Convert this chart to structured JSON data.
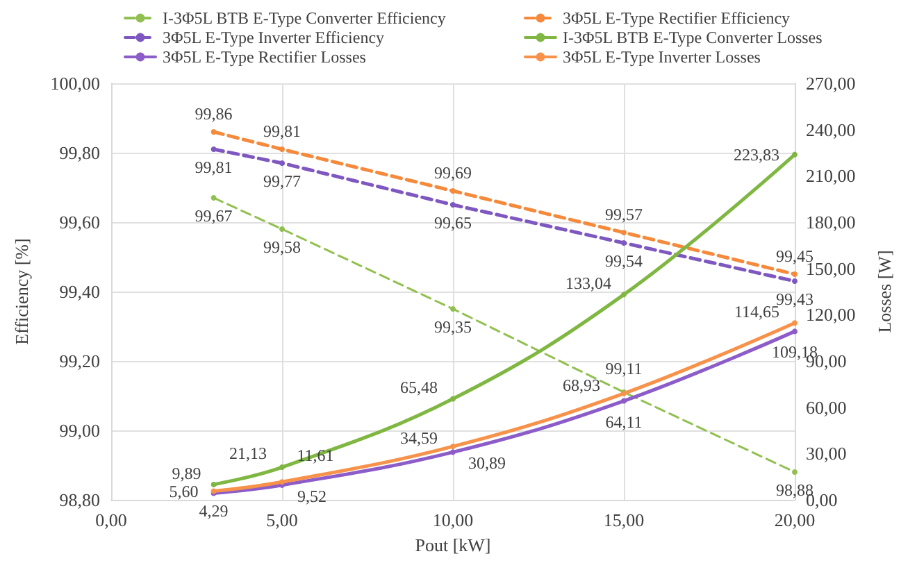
{
  "chart_data": {
    "type": "line",
    "xlabel": "Pout [kW]",
    "ylabel": "Efficiency [%]",
    "y2label": "Losses [W]",
    "x": [
      3,
      5,
      10,
      15,
      20
    ],
    "xlim": [
      0,
      20
    ],
    "xticks": [
      {
        "value": 0,
        "label": "0,00"
      },
      {
        "value": 5,
        "label": "5,00"
      },
      {
        "value": 10,
        "label": "10,00"
      },
      {
        "value": 15,
        "label": "15,00"
      },
      {
        "value": 20,
        "label": "20,00"
      }
    ],
    "ylim": [
      98.8,
      100
    ],
    "yticks": [
      {
        "value": 98.8,
        "label": "98,80"
      },
      {
        "value": 99,
        "label": "99,00"
      },
      {
        "value": 99.2,
        "label": "99,20"
      },
      {
        "value": 99.4,
        "label": "99,40"
      },
      {
        "value": 99.6,
        "label": "99,60"
      },
      {
        "value": 99.8,
        "label": "99,80"
      },
      {
        "value": 100,
        "label": "100,00"
      }
    ],
    "y2lim": [
      0,
      270
    ],
    "y2ticks": [
      {
        "value": 0,
        "label": "0,00"
      },
      {
        "value": 30,
        "label": "30,00"
      },
      {
        "value": 60,
        "label": "60,00"
      },
      {
        "value": 90,
        "label": "90,00"
      },
      {
        "value": 120,
        "label": "120,00"
      },
      {
        "value": 150,
        "label": "150,00"
      },
      {
        "value": 180,
        "label": "180,00"
      },
      {
        "value": 210,
        "label": "210,00"
      },
      {
        "value": 240,
        "label": "240,00"
      },
      {
        "value": 270,
        "label": "270,00"
      }
    ],
    "grid": true,
    "legend": "top",
    "marker": "circle",
    "series": [
      {
        "name": "I-3Φ5L BTB E-Type Converter Efficiency",
        "color": "#92c050",
        "line_style": "dashed",
        "values": [
          99.67,
          99.58,
          99.35,
          99.11,
          98.88
        ],
        "value_labels": [
          "99,67",
          "99,58",
          "99,35",
          "99,11",
          "98,88"
        ]
      },
      {
        "name": "3Φ5L E-Type Rectifier Efficiency",
        "color": "#f58a3c",
        "line_style": "dashed",
        "values": [
          99.86,
          99.81,
          99.69,
          99.57,
          99.45
        ],
        "value_labels": [
          "99,86",
          "99,81",
          "99,69",
          "99,57",
          "99,45"
        ]
      },
      {
        "name": "3Φ5L E-Type Inverter Efficiency",
        "color": "#7e58c0",
        "line_style": "dashed",
        "values": [
          99.81,
          99.77,
          99.65,
          99.54,
          99.43
        ],
        "value_labels": [
          "99,81",
          "99,77",
          "99,65",
          "99,54",
          "99,43"
        ]
      },
      {
        "name": "I-3Φ5L BTB E-Type Converter Losses",
        "color": "#7fb742",
        "line_style": "solid",
        "axis": "y2",
        "values": [
          9.89,
          21.13,
          65.48,
          133.04,
          223.83
        ],
        "value_labels": [
          "9,89",
          "21,13",
          "65,48",
          "133,04",
          "223,83"
        ]
      },
      {
        "name": "3Φ5L E-Type Rectifier Losses",
        "color": "#8c5cc8",
        "line_style": "solid",
        "axis": "y2",
        "values": [
          4.29,
          9.52,
          30.89,
          64.11,
          109.18
        ],
        "value_labels": [
          "4,29",
          "9,52",
          "30,89",
          "64,11",
          "109,18"
        ]
      },
      {
        "name": "3Φ5L E-Type Inverter Losses",
        "color": "#f7924a",
        "line_style": "solid",
        "axis": "y2",
        "values": [
          5.6,
          11.61,
          34.59,
          68.93,
          114.65
        ],
        "value_labels": [
          "5,60",
          "11,61",
          "34,59",
          "68,93",
          "114,65"
        ]
      }
    ]
  }
}
